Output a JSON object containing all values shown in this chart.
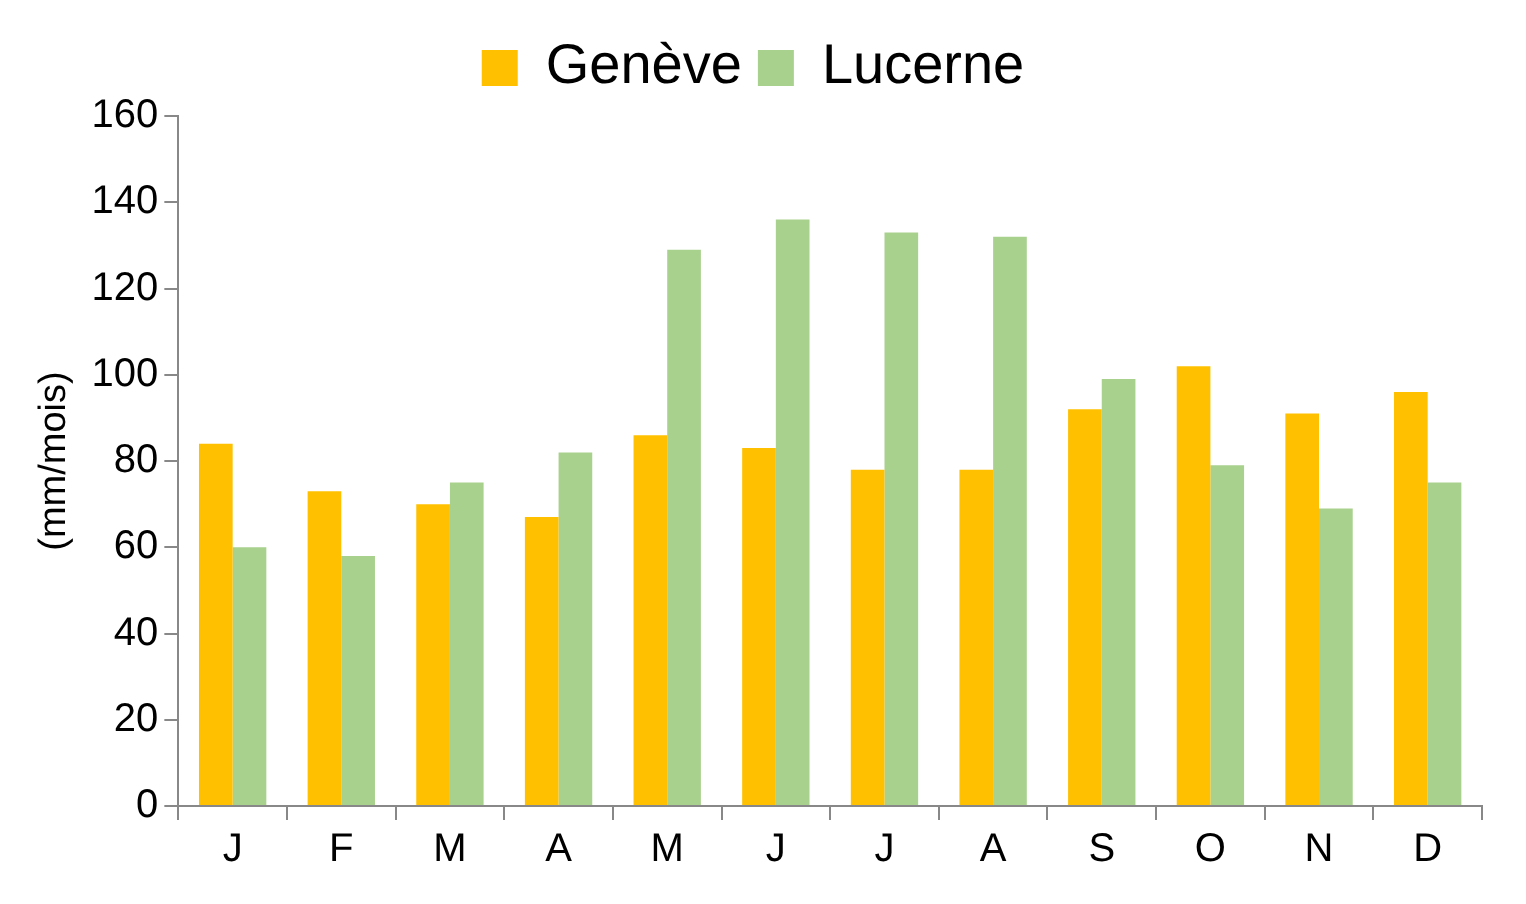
{
  "chart_data": {
    "type": "bar",
    "ylabel": "(mm/mois)",
    "categories": [
      "J",
      "F",
      "M",
      "A",
      "M",
      "J",
      "J",
      "A",
      "S",
      "O",
      "N",
      "D"
    ],
    "series": [
      {
        "name": "Genève",
        "color": "#ffc000",
        "values": [
          84,
          73,
          70,
          67,
          86,
          83,
          78,
          78,
          92,
          102,
          91,
          96
        ]
      },
      {
        "name": "Lucerne",
        "color": "#a9d18e",
        "values": [
          60,
          58,
          75,
          82,
          129,
          136,
          133,
          132,
          99,
          79,
          69,
          75
        ]
      }
    ],
    "ylim": [
      0,
      160
    ],
    "yticks": [
      0,
      20,
      40,
      60,
      80,
      100,
      120,
      140,
      160
    ],
    "grid": false,
    "legend": "top"
  }
}
